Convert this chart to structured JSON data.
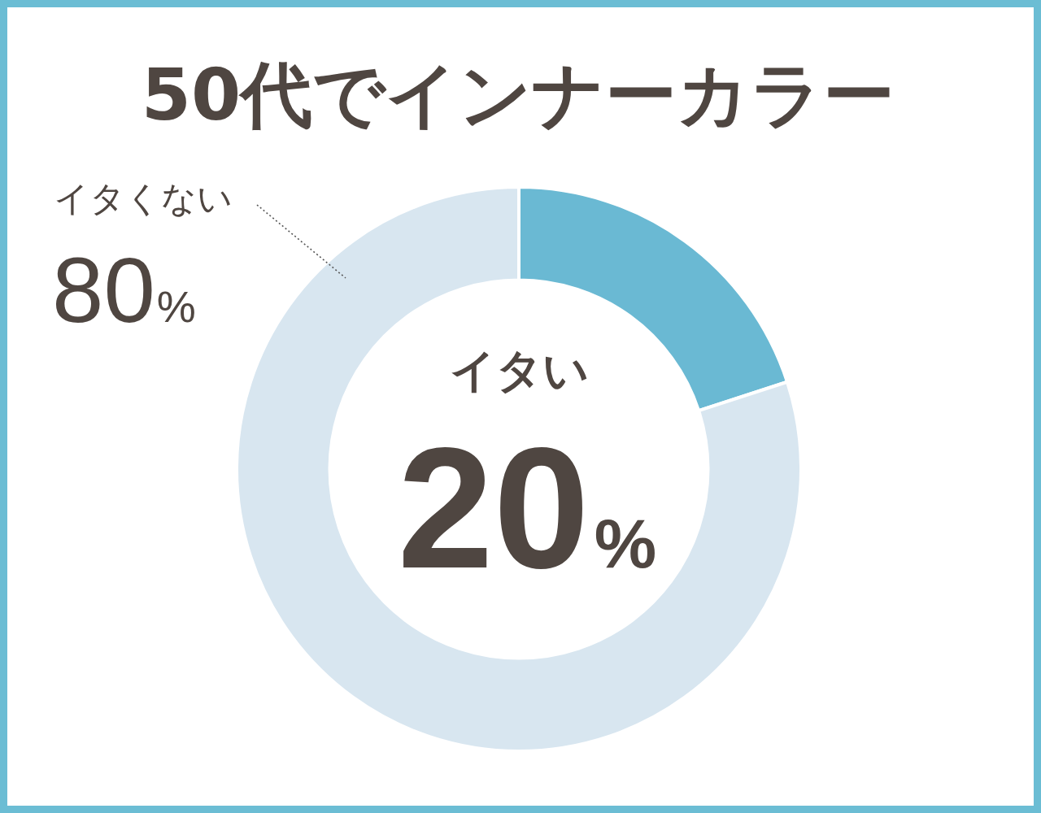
{
  "chart_data": {
    "type": "donut",
    "title": "50代でインナーカラー",
    "categories": [
      "イタい",
      "イタくない"
    ],
    "values": [
      20,
      80
    ],
    "colors": [
      "#6ab9d3",
      "#d8e6f0"
    ],
    "value_labels": [
      "20%",
      "80%"
    ]
  }
}
